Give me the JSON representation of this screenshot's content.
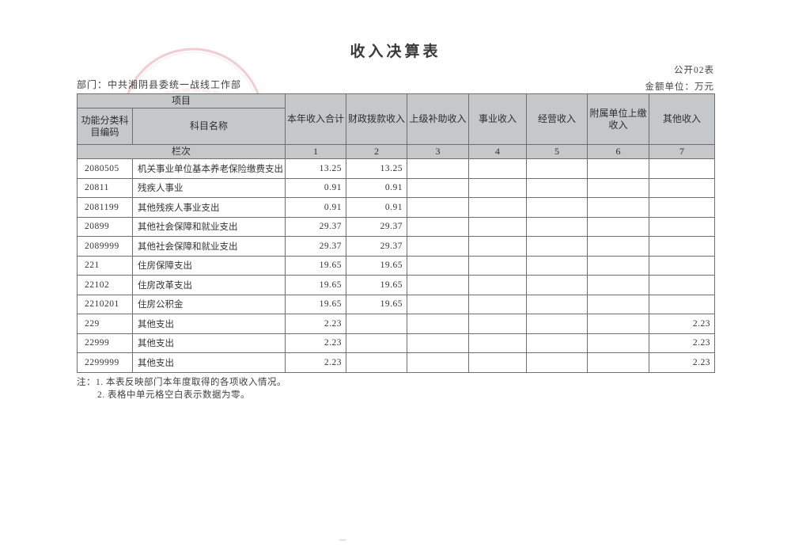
{
  "page": {
    "title": "收入决算表",
    "form_code": "公开02表",
    "department": "部门：中共湘阴县委统一战线工作部",
    "unit": "金额单位：万元"
  },
  "table": {
    "header": {
      "project": "项目",
      "code": "功能分类科目编码",
      "subject_name": "科目名称",
      "col_total": "本年收入合计",
      "col_fiscal": "财政拨款收入",
      "col_superior": "上级补助收入",
      "col_business": "事业收入",
      "col_operating": "经营收入",
      "col_affiliated": "附属单位上缴收入",
      "col_other": "其他收入",
      "row_index_label": "栏次"
    },
    "column_numbers": [
      "1",
      "2",
      "3",
      "4",
      "5",
      "6",
      "7"
    ],
    "rows": [
      {
        "cells": [
          "2080505",
          "机关事业单位基本养老保险缴费支出",
          "13.25",
          "13.25",
          "",
          "",
          "",
          "",
          ""
        ]
      },
      {
        "cells": [
          "20811",
          "残疾人事业",
          "0.91",
          "0.91",
          "",
          "",
          "",
          "",
          ""
        ]
      },
      {
        "cells": [
          "2081199",
          "其他残疾人事业支出",
          "0.91",
          "0.91",
          "",
          "",
          "",
          "",
          ""
        ]
      },
      {
        "cells": [
          "20899",
          "其他社会保障和就业支出",
          "29.37",
          "29.37",
          "",
          "",
          "",
          "",
          ""
        ]
      },
      {
        "cells": [
          "2089999",
          "其他社会保障和就业支出",
          "29.37",
          "29.37",
          "",
          "",
          "",
          "",
          ""
        ]
      },
      {
        "cells": [
          "221",
          "住房保障支出",
          "19.65",
          "19.65",
          "",
          "",
          "",
          "",
          ""
        ]
      },
      {
        "cells": [
          "22102",
          "住房改革支出",
          "19.65",
          "19.65",
          "",
          "",
          "",
          "",
          ""
        ]
      },
      {
        "cells": [
          "2210201",
          "住房公积金",
          "19.65",
          "19.65",
          "",
          "",
          "",
          "",
          ""
        ]
      },
      {
        "cells": [
          "229",
          "其他支出",
          "2.23",
          "",
          "",
          "",
          "",
          "",
          "2.23"
        ]
      },
      {
        "cells": [
          "22999",
          "其他支出",
          "2.23",
          "",
          "",
          "",
          "",
          "",
          "2.23"
        ]
      },
      {
        "cells": [
          "2299999",
          "其他支出",
          "2.23",
          "",
          "",
          "",
          "",
          "",
          "2.23"
        ]
      }
    ]
  },
  "notes": [
    "注：1. 本表反映部门本年度取得的各项收入情况。",
    "2. 表格中单元格空白表示数据为零。"
  ],
  "stamp": {
    "color": "#c84f5b"
  }
}
